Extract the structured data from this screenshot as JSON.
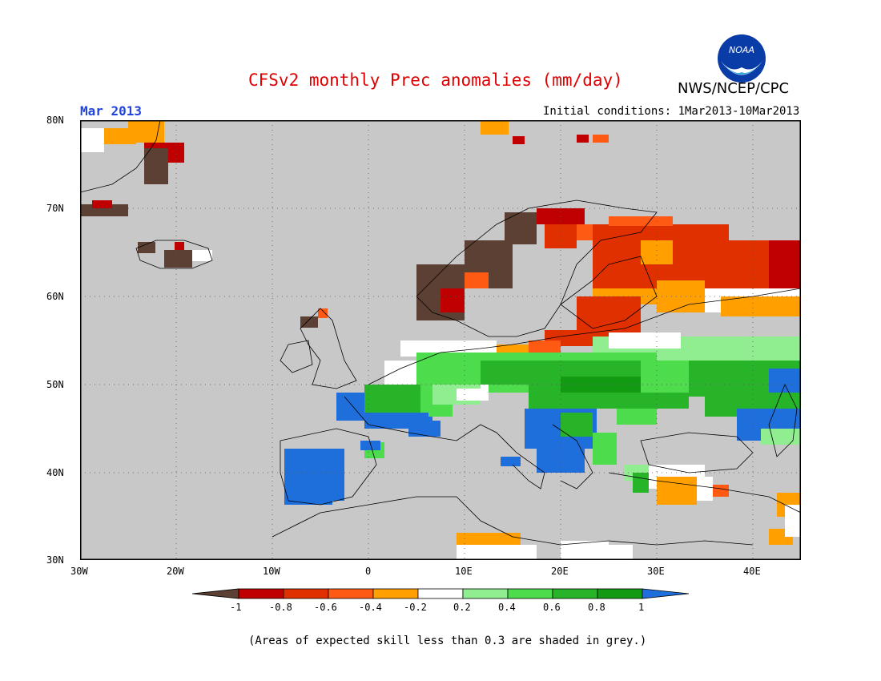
{
  "header": {
    "title": "CFSv2 monthly Prec anomalies (mm/day)",
    "month": "Mar 2013",
    "initial_conditions": "Initial conditions: 1Mar2013-10Mar2013",
    "agency": "NWS/NCEP/CPC",
    "logo_text": "NOAA"
  },
  "map": {
    "lat_labels": [
      "80N",
      "70N",
      "60N",
      "50N",
      "40N",
      "30N"
    ],
    "lon_labels": [
      "30W",
      "20W",
      "10W",
      "0",
      "10E",
      "20E",
      "30E",
      "40E"
    ],
    "background_color": "#c8c8c8"
  },
  "colorbar": {
    "tick_labels": [
      "-1",
      "-0.8",
      "-0.6",
      "-0.4",
      "-0.2",
      "0.2",
      "0.4",
      "0.6",
      "0.8",
      "1"
    ],
    "colors": [
      "#5c4033",
      "#c00000",
      "#e03000",
      "#ff5a14",
      "#ff9f00",
      "#ffffff",
      "#90ee90",
      "#4cdc4c",
      "#28b428",
      "#129b12",
      "#1e6edc"
    ]
  },
  "footnote": "(Areas of expected skill less than 0.3 are shaded in grey.)",
  "colors": {
    "title": "#e00000",
    "month": "#2244dd",
    "grey": "#c8c8c8",
    "land_line": "#000000"
  }
}
